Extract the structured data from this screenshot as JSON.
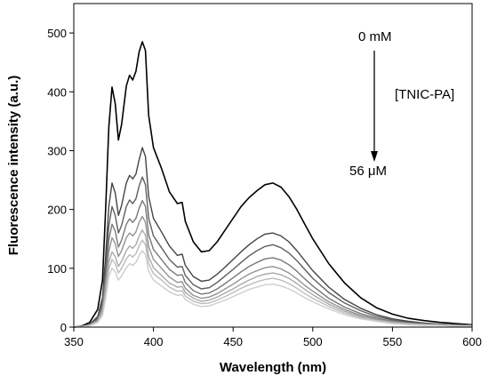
{
  "chart_data": {
    "type": "line",
    "title": "",
    "xlabel": "Wavelength (nm)",
    "ylabel": "Fluorescence intensity (a.u.)",
    "xlim": [
      350,
      600
    ],
    "ylim": [
      0,
      550
    ],
    "xticks": [
      350,
      400,
      450,
      500,
      550,
      600
    ],
    "yticks": [
      0,
      100,
      200,
      300,
      400,
      500
    ],
    "grid": false,
    "legend": "none",
    "annotations": {
      "start": "0 mM",
      "end": "56 μM",
      "label": "[TNIC-PA]"
    },
    "series_colors": [
      "#000000",
      "#444444",
      "#5e5e5e",
      "#787878",
      "#929292",
      "#a9a9a9",
      "#bcbcbc",
      "#cdcdcd"
    ],
    "x": [
      350,
      355,
      360,
      365,
      368,
      370,
      372,
      374,
      376,
      378,
      380,
      383,
      385,
      387,
      389,
      391,
      393,
      395,
      397,
      400,
      405,
      410,
      415,
      418,
      420,
      425,
      430,
      435,
      440,
      445,
      450,
      455,
      460,
      465,
      470,
      475,
      480,
      485,
      490,
      495,
      500,
      510,
      520,
      530,
      540,
      550,
      560,
      570,
      580,
      590,
      600
    ],
    "series": [
      {
        "values": [
          0,
          2,
          8,
          30,
          80,
          200,
          340,
          408,
          380,
          318,
          345,
          410,
          428,
          420,
          435,
          468,
          485,
          470,
          360,
          305,
          270,
          230,
          210,
          212,
          180,
          145,
          128,
          130,
          145,
          165,
          185,
          205,
          220,
          232,
          242,
          245,
          238,
          222,
          200,
          175,
          150,
          108,
          75,
          50,
          33,
          22,
          15,
          11,
          8,
          6,
          4
        ]
      },
      {
        "values": [
          0,
          1,
          5,
          18,
          50,
          120,
          205,
          245,
          228,
          190,
          207,
          245,
          258,
          252,
          260,
          285,
          305,
          290,
          222,
          185,
          162,
          138,
          122,
          124,
          105,
          86,
          78,
          80,
          90,
          102,
          115,
          128,
          140,
          150,
          158,
          160,
          155,
          145,
          130,
          113,
          96,
          68,
          47,
          32,
          21,
          14,
          10,
          7,
          5,
          4,
          3
        ]
      },
      {
        "values": [
          0,
          1,
          4,
          15,
          42,
          100,
          172,
          205,
          190,
          160,
          173,
          205,
          216,
          210,
          218,
          240,
          255,
          242,
          185,
          155,
          135,
          115,
          102,
          103,
          88,
          72,
          65,
          67,
          76,
          87,
          98,
          110,
          121,
          130,
          137,
          140,
          135,
          126,
          113,
          98,
          83,
          59,
          41,
          28,
          18,
          12,
          8,
          6,
          5,
          4,
          3
        ]
      },
      {
        "values": [
          0,
          1,
          4,
          13,
          35,
          85,
          148,
          175,
          163,
          136,
          148,
          175,
          184,
          178,
          185,
          202,
          215,
          205,
          157,
          132,
          115,
          98,
          88,
          89,
          76,
          62,
          56,
          58,
          65,
          74,
          84,
          94,
          103,
          110,
          116,
          118,
          114,
          106,
          95,
          82,
          70,
          49,
          34,
          23,
          15,
          10,
          7,
          5,
          4,
          3,
          2
        ]
      },
      {
        "values": [
          0,
          1,
          3,
          11,
          30,
          72,
          128,
          152,
          142,
          120,
          130,
          152,
          160,
          155,
          162,
          178,
          188,
          178,
          137,
          115,
          100,
          85,
          76,
          77,
          66,
          54,
          49,
          51,
          57,
          65,
          73,
          82,
          90,
          96,
          101,
          103,
          99,
          92,
          82,
          71,
          61,
          43,
          30,
          20,
          13,
          9,
          6,
          5,
          4,
          3,
          2
        ]
      },
      {
        "values": [
          0,
          1,
          3,
          10,
          26,
          62,
          110,
          128,
          120,
          103,
          112,
          130,
          138,
          134,
          140,
          155,
          165,
          156,
          120,
          101,
          88,
          75,
          68,
          69,
          59,
          49,
          44,
          46,
          51,
          58,
          65,
          73,
          80,
          86,
          90,
          92,
          89,
          83,
          74,
          64,
          55,
          39,
          27,
          18,
          12,
          8,
          6,
          4,
          3,
          2,
          2
        ]
      },
      {
        "values": [
          0,
          1,
          3,
          9,
          23,
          55,
          98,
          115,
          108,
          92,
          100,
          116,
          123,
          119,
          125,
          138,
          148,
          140,
          108,
          91,
          80,
          68,
          61,
          62,
          53,
          44,
          40,
          41,
          46,
          52,
          59,
          66,
          72,
          77,
          81,
          83,
          80,
          74,
          66,
          57,
          49,
          35,
          24,
          16,
          11,
          7,
          5,
          4,
          3,
          2,
          2
        ]
      },
      {
        "values": [
          0,
          1,
          2,
          8,
          20,
          48,
          86,
          100,
          94,
          80,
          87,
          101,
          108,
          105,
          110,
          122,
          130,
          123,
          95,
          80,
          70,
          60,
          54,
          55,
          47,
          39,
          35,
          36,
          41,
          46,
          52,
          58,
          64,
          68,
          72,
          73,
          70,
          65,
          58,
          50,
          43,
          31,
          21,
          14,
          10,
          6,
          4,
          3,
          3,
          2,
          2
        ]
      }
    ]
  }
}
